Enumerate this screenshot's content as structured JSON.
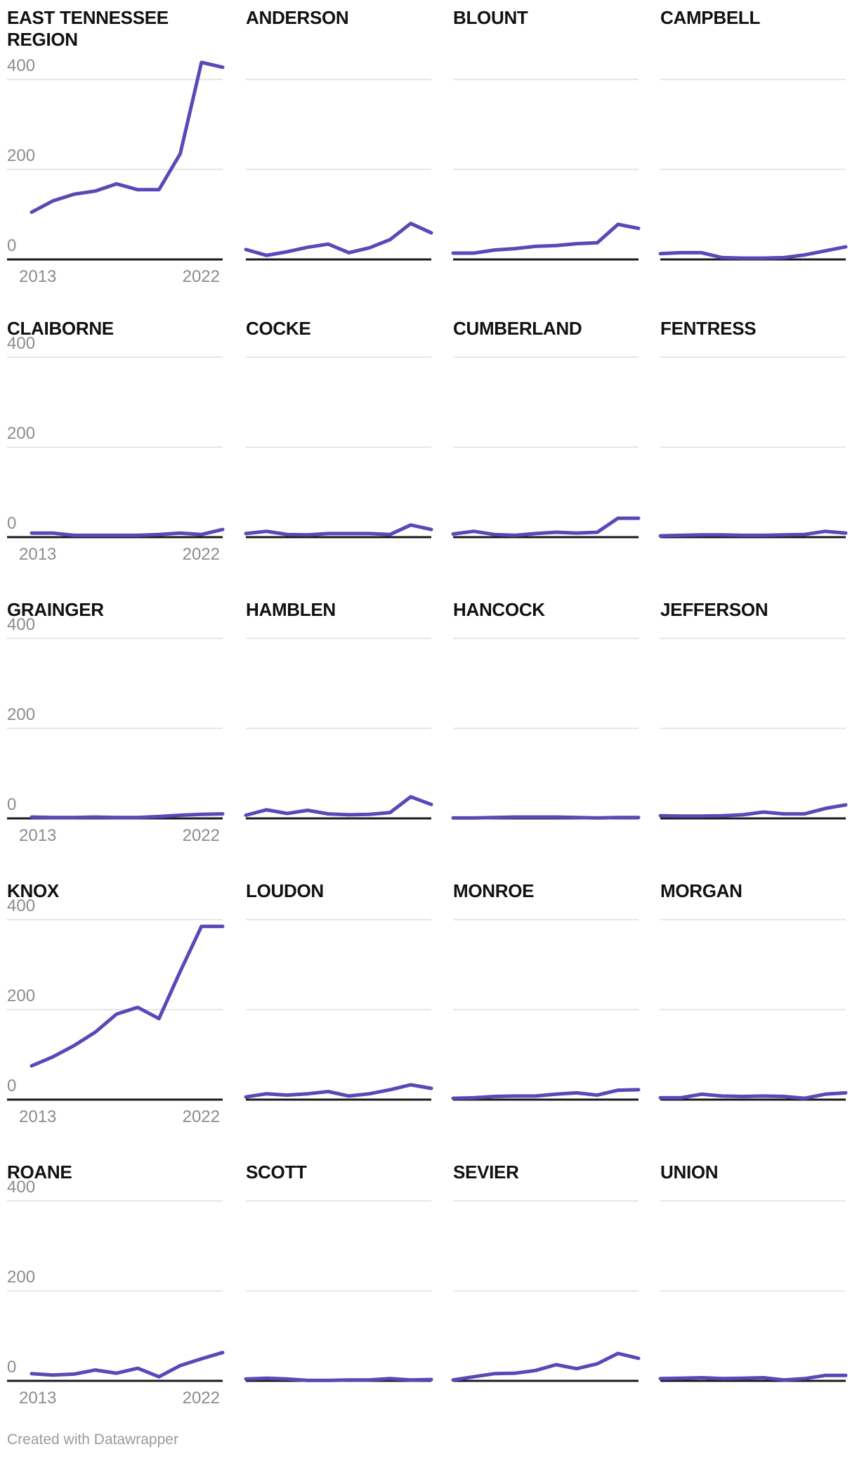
{
  "chart_data": {
    "type": "line",
    "x": [
      2013,
      2014,
      2015,
      2016,
      2017,
      2018,
      2019,
      2020,
      2021,
      2022
    ],
    "series": [
      {
        "name": "EAST TENNESSEE REGION",
        "values": [
          105,
          130,
          145,
          152,
          168,
          155,
          155,
          235,
          438,
          427
        ]
      },
      {
        "name": "ANDERSON",
        "values": [
          22,
          9,
          17,
          27,
          34,
          15,
          26,
          44,
          80,
          59
        ]
      },
      {
        "name": "BLOUNT",
        "values": [
          14,
          14,
          21,
          24,
          29,
          31,
          35,
          37,
          78,
          69
        ]
      },
      {
        "name": "CAMPBELL",
        "values": [
          13,
          15,
          15,
          4,
          3,
          3,
          4,
          10,
          19,
          28
        ]
      },
      {
        "name": "CLAIBORNE",
        "values": [
          9,
          9,
          4,
          4,
          4,
          4,
          6,
          9,
          6,
          17
        ]
      },
      {
        "name": "COCKE",
        "values": [
          8,
          13,
          6,
          5,
          8,
          8,
          8,
          6,
          27,
          17
        ]
      },
      {
        "name": "CUMBERLAND",
        "values": [
          7,
          13,
          6,
          4,
          8,
          11,
          9,
          11,
          42,
          42
        ]
      },
      {
        "name": "FENTRESS",
        "values": [
          3,
          4,
          5,
          5,
          4,
          4,
          5,
          6,
          13,
          9
        ]
      },
      {
        "name": "GRAINGER",
        "values": [
          3,
          2,
          2,
          3,
          2,
          2,
          4,
          7,
          9,
          10
        ]
      },
      {
        "name": "HAMBLEN",
        "values": [
          7,
          19,
          11,
          18,
          10,
          8,
          9,
          13,
          48,
          31
        ]
      },
      {
        "name": "HANCOCK",
        "values": [
          1,
          1,
          2,
          3,
          3,
          3,
          2,
          1,
          2,
          2
        ]
      },
      {
        "name": "JEFFERSON",
        "values": [
          6,
          5,
          5,
          6,
          8,
          14,
          10,
          10,
          22,
          30
        ]
      },
      {
        "name": "KNOX",
        "values": [
          75,
          95,
          120,
          150,
          190,
          205,
          180,
          285,
          385,
          385
        ]
      },
      {
        "name": "LOUDON",
        "values": [
          6,
          13,
          10,
          13,
          18,
          8,
          13,
          22,
          33,
          25
        ]
      },
      {
        "name": "MONROE",
        "values": [
          3,
          4,
          7,
          8,
          8,
          12,
          15,
          10,
          21,
          22
        ]
      },
      {
        "name": "MORGAN",
        "values": [
          4,
          4,
          12,
          8,
          7,
          8,
          7,
          3,
          12,
          15
        ]
      },
      {
        "name": "ROANE",
        "values": [
          16,
          13,
          15,
          24,
          17,
          28,
          9,
          34,
          49,
          63
        ]
      },
      {
        "name": "SCOTT",
        "values": [
          4,
          6,
          4,
          1,
          1,
          2,
          2,
          5,
          2,
          3
        ]
      },
      {
        "name": "SEVIER",
        "values": [
          2,
          9,
          16,
          17,
          23,
          36,
          27,
          38,
          61,
          50
        ]
      },
      {
        "name": "UNION",
        "values": [
          5,
          6,
          7,
          5,
          6,
          7,
          2,
          5,
          12,
          12
        ]
      }
    ],
    "ylim": [
      0,
      440
    ],
    "yticks": [
      400,
      200,
      0
    ],
    "ytick_labels": [
      "400",
      "200",
      "0"
    ],
    "xtick_labels": [
      "2013",
      "2022"
    ],
    "grid": "horizontal-gridlines-at-0-200-400",
    "legend": "none",
    "line_color": "#5a48b8"
  },
  "colors": {
    "line": "#5a48b8",
    "axis": "#1a1a1a",
    "gridline": "#e7e7e7",
    "tick_text": "#8c8c8c",
    "title_text": "#111111",
    "footer_text": "#9b9b9b",
    "background": "#ffffff"
  },
  "footer": {
    "credit": "Created with Datawrapper"
  }
}
